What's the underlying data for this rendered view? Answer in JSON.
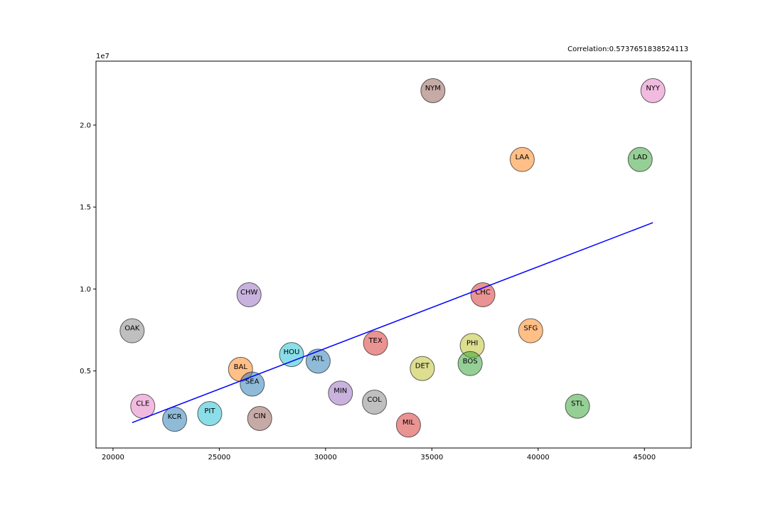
{
  "chart_data": {
    "type": "scatter",
    "title": "",
    "xlabel": "",
    "ylabel": "",
    "xlim": [
      19200,
      47200
    ],
    "ylim": [
      300000,
      23900000
    ],
    "x_ticks": [
      20000,
      25000,
      30000,
      35000,
      40000,
      45000
    ],
    "x_tick_labels": [
      "20000",
      "25000",
      "30000",
      "35000",
      "40000",
      "45000"
    ],
    "y_ticks": [
      5000000,
      10000000,
      15000000,
      20000000
    ],
    "y_tick_labels": [
      "0.5",
      "1.0",
      "1.5",
      "2.0"
    ],
    "y_offset_label": "1e7",
    "annotation": "Correlation:0.5737651838524113",
    "marker_size_label": "",
    "palette": [
      "#1f77b4",
      "#ff7f0e",
      "#2ca02c",
      "#d62728",
      "#9467bd",
      "#8c564b",
      "#e377c2",
      "#7f7f7f",
      "#bcbd22",
      "#17becf"
    ],
    "points": [
      {
        "label": "NYY",
        "x": 45400,
        "y": 22100000,
        "color": "#e377c2"
      },
      {
        "label": "NYM",
        "x": 35050,
        "y": 22100000,
        "color": "#8c564b"
      },
      {
        "label": "LAA",
        "x": 39250,
        "y": 17900000,
        "color": "#ff7f0e"
      },
      {
        "label": "LAD",
        "x": 44800,
        "y": 17900000,
        "color": "#2ca02c"
      },
      {
        "label": "CHC",
        "x": 37400,
        "y": 9650000,
        "color": "#d62728"
      },
      {
        "label": "CHW",
        "x": 26400,
        "y": 9650000,
        "color": "#9467bd"
      },
      {
        "label": "OAK",
        "x": 20900,
        "y": 7450000,
        "color": "#7f7f7f"
      },
      {
        "label": "SFG",
        "x": 39650,
        "y": 7450000,
        "color": "#ff7f0e"
      },
      {
        "label": "TEX",
        "x": 32350,
        "y": 6700000,
        "color": "#d62728"
      },
      {
        "label": "PHI",
        "x": 36900,
        "y": 6550000,
        "color": "#bcbd22"
      },
      {
        "label": "HOU",
        "x": 28400,
        "y": 6000000,
        "color": "#17becf"
      },
      {
        "label": "ATL",
        "x": 29650,
        "y": 5600000,
        "color": "#1f77b4"
      },
      {
        "label": "BOS",
        "x": 36800,
        "y": 5450000,
        "color": "#2ca02c"
      },
      {
        "label": "BAL",
        "x": 26000,
        "y": 5100000,
        "color": "#ff7f0e"
      },
      {
        "label": "DET",
        "x": 34550,
        "y": 5150000,
        "color": "#bcbd22"
      },
      {
        "label": "SEA",
        "x": 26550,
        "y": 4200000,
        "color": "#1f77b4"
      },
      {
        "label": "MIN",
        "x": 30700,
        "y": 3650000,
        "color": "#9467bd"
      },
      {
        "label": "COL",
        "x": 32300,
        "y": 3100000,
        "color": "#7f7f7f"
      },
      {
        "label": "CLE",
        "x": 21400,
        "y": 2850000,
        "color": "#e377c2"
      },
      {
        "label": "STL",
        "x": 41850,
        "y": 2850000,
        "color": "#2ca02c"
      },
      {
        "label": "PIT",
        "x": 24550,
        "y": 2400000,
        "color": "#17becf"
      },
      {
        "label": "CIN",
        "x": 26900,
        "y": 2100000,
        "color": "#8c564b"
      },
      {
        "label": "KCR",
        "x": 22900,
        "y": 2050000,
        "color": "#1f77b4"
      },
      {
        "label": "MIL",
        "x": 33900,
        "y": 1700000,
        "color": "#d62728"
      }
    ],
    "trend_line": {
      "color": "#0000ff",
      "x": [
        20900,
        45400
      ],
      "y": [
        1850000,
        14050000
      ]
    }
  }
}
